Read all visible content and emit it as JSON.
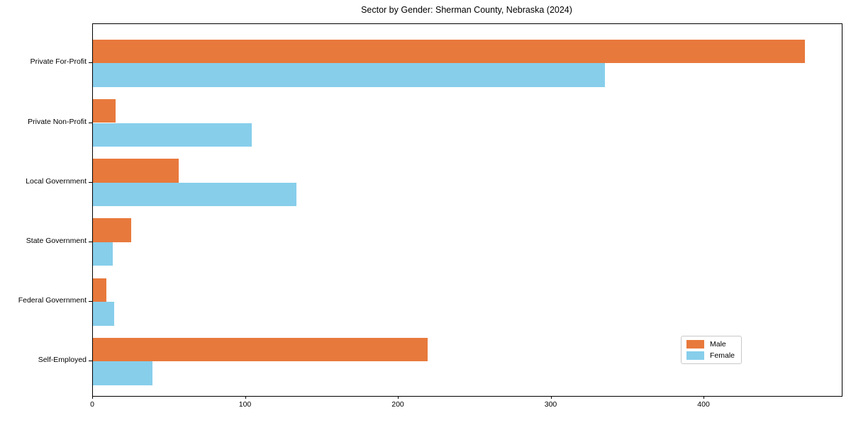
{
  "chart_data": {
    "type": "bar",
    "orientation": "horizontal",
    "title": "Sector by Gender: Sherman County, Nebraska (2024)",
    "xlabel": "",
    "ylabel": "",
    "categories": [
      "Private For-Profit",
      "Private Non-Profit",
      "Local Government",
      "State Government",
      "Federal Government",
      "Self-Employed"
    ],
    "series": [
      {
        "name": "Male",
        "color": "#e8793c",
        "values": [
          466,
          15,
          56,
          25,
          9,
          219
        ]
      },
      {
        "name": "Female",
        "color": "#87ceeb",
        "values": [
          335,
          104,
          133,
          13,
          14,
          39
        ]
      }
    ],
    "xlim": [
      0,
      490
    ],
    "xticks": [
      "0",
      "100",
      "200",
      "300",
      "400"
    ],
    "xtick_values": [
      0,
      100,
      200,
      300,
      400
    ],
    "grid": false,
    "legend_position": "lower right",
    "background_color": "#ffffff",
    "axis_color": "#000000"
  }
}
